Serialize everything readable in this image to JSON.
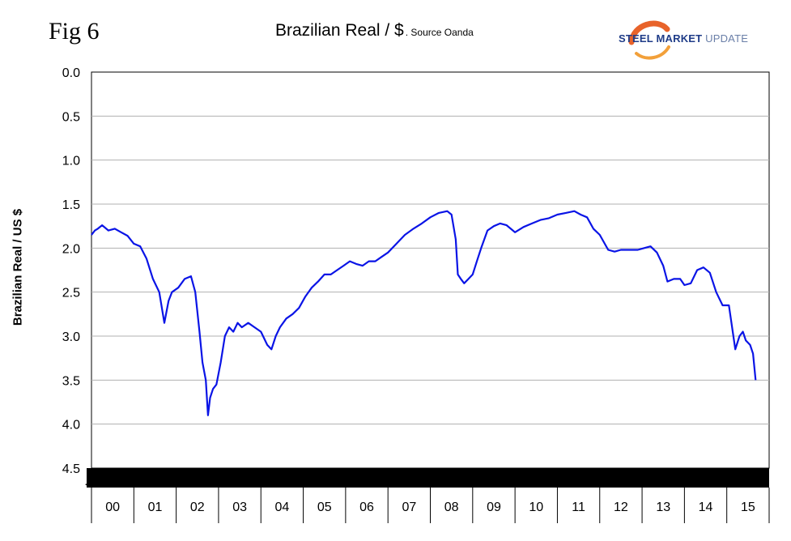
{
  "figure_label": "Fig 6",
  "logo": {
    "word1": "STEEL",
    "word2": "MARKET",
    "word3": "UPDATE",
    "swoosh_color": "#e8632a"
  },
  "chart_data": {
    "type": "line",
    "title": "Brazilian Real / $",
    "subtitle": ". Source Oanda",
    "xlabel": "",
    "ylabel": "Brazilian Real / US $",
    "y_inverted": true,
    "ylim": [
      0.0,
      4.5
    ],
    "yticks": [
      "0.0",
      "0.5",
      "1.0",
      "1.5",
      "2.0",
      "2.5",
      "3.0",
      "3.5",
      "4.0",
      "4.5"
    ],
    "xlim": [
      2000.0,
      2016.0
    ],
    "categories": [
      "00",
      "01",
      "02",
      "03",
      "04",
      "05",
      "06",
      "07",
      "08",
      "09",
      "10",
      "11",
      "12",
      "13",
      "14",
      "15"
    ],
    "grid": true,
    "line_color": "#0a14e6",
    "series": [
      {
        "name": "",
        "x": [
          2000.0,
          2000.08,
          2000.15,
          2000.25,
          2000.4,
          2000.55,
          2000.7,
          2000.85,
          2001.0,
          2001.15,
          2001.3,
          2001.45,
          2001.6,
          2001.72,
          2001.82,
          2001.9,
          2002.05,
          2002.2,
          2002.35,
          2002.45,
          2002.55,
          2002.62,
          2002.7,
          2002.75,
          2002.8,
          2002.87,
          2002.95,
          2003.05,
          2003.15,
          2003.25,
          2003.35,
          2003.45,
          2003.55,
          2003.7,
          2003.85,
          2004.0,
          2004.15,
          2004.25,
          2004.35,
          2004.45,
          2004.6,
          2004.75,
          2004.9,
          2005.05,
          2005.2,
          2005.35,
          2005.5,
          2005.65,
          2005.8,
          2005.95,
          2006.1,
          2006.25,
          2006.4,
          2006.55,
          2006.7,
          2006.85,
          2007.0,
          2007.2,
          2007.4,
          2007.6,
          2007.8,
          2008.0,
          2008.2,
          2008.4,
          2008.5,
          2008.6,
          2008.65,
          2008.72,
          2008.8,
          2008.9,
          2009.0,
          2009.1,
          2009.2,
          2009.35,
          2009.5,
          2009.65,
          2009.8,
          2010.0,
          2010.2,
          2010.4,
          2010.6,
          2010.8,
          2011.0,
          2011.2,
          2011.4,
          2011.55,
          2011.7,
          2011.85,
          2012.0,
          2012.2,
          2012.35,
          2012.5,
          2012.7,
          2012.9,
          2013.05,
          2013.2,
          2013.35,
          2013.5,
          2013.6,
          2013.75,
          2013.9,
          2014.0,
          2014.15,
          2014.3,
          2014.45,
          2014.6,
          2014.75,
          2014.9,
          2015.05,
          2015.2,
          2015.3,
          2015.38,
          2015.45,
          2015.55,
          2015.62,
          2015.68
        ],
        "values": [
          1.85,
          1.8,
          1.78,
          1.74,
          1.8,
          1.78,
          1.82,
          1.86,
          1.95,
          1.98,
          2.12,
          2.35,
          2.5,
          2.85,
          2.6,
          2.5,
          2.45,
          2.35,
          2.32,
          2.5,
          2.95,
          3.3,
          3.5,
          3.9,
          3.7,
          3.6,
          3.55,
          3.3,
          3.0,
          2.9,
          2.95,
          2.85,
          2.9,
          2.85,
          2.9,
          2.95,
          3.1,
          3.15,
          3.0,
          2.9,
          2.8,
          2.75,
          2.68,
          2.55,
          2.45,
          2.38,
          2.3,
          2.3,
          2.25,
          2.2,
          2.15,
          2.18,
          2.2,
          2.15,
          2.15,
          2.1,
          2.05,
          1.95,
          1.85,
          1.78,
          1.72,
          1.65,
          1.6,
          1.58,
          1.62,
          1.9,
          2.3,
          2.35,
          2.4,
          2.35,
          2.3,
          2.15,
          2.0,
          1.8,
          1.75,
          1.72,
          1.74,
          1.82,
          1.76,
          1.72,
          1.68,
          1.66,
          1.62,
          1.6,
          1.58,
          1.62,
          1.65,
          1.78,
          1.85,
          2.02,
          2.04,
          2.02,
          2.02,
          2.02,
          2.0,
          1.98,
          2.05,
          2.2,
          2.38,
          2.35,
          2.35,
          2.42,
          2.4,
          2.25,
          2.22,
          2.28,
          2.5,
          2.65,
          2.65,
          3.15,
          3.0,
          2.95,
          3.05,
          3.1,
          3.2,
          3.5
        ]
      }
    ]
  }
}
